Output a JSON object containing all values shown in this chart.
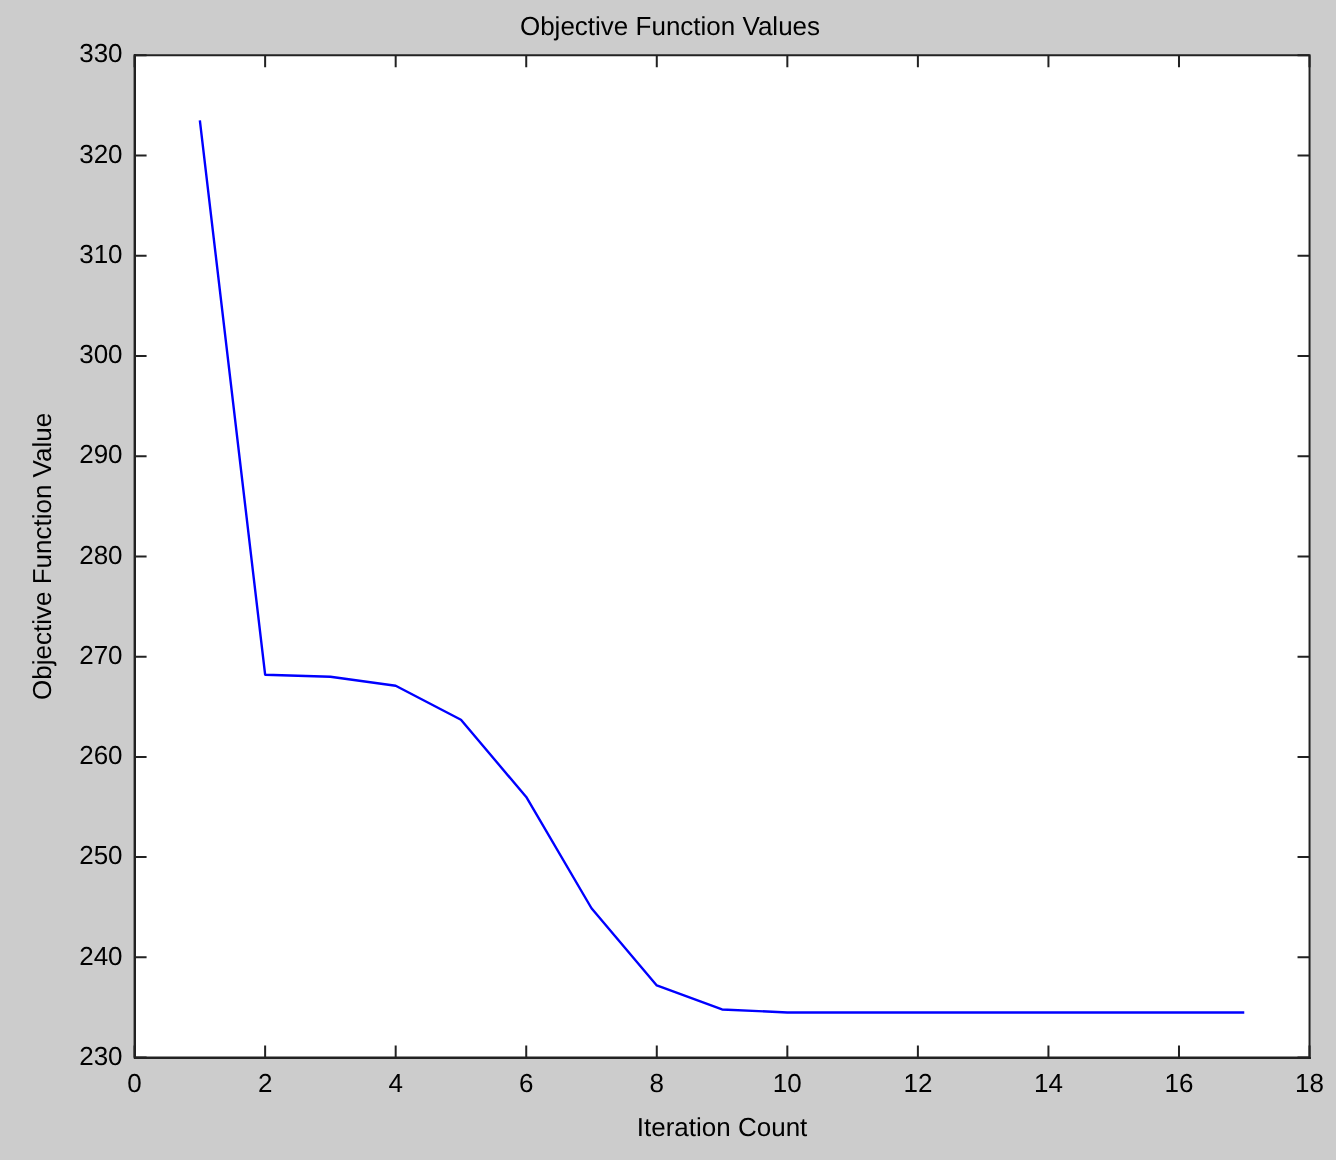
{
  "chart_data": {
    "type": "line",
    "title": "Objective Function Values",
    "xlabel": "Iteration Count",
    "ylabel": "Objective Function Value",
    "x": [
      1,
      2,
      3,
      4,
      5,
      6,
      7,
      8,
      9,
      10,
      11,
      12,
      13,
      14,
      15,
      16,
      17
    ],
    "series": [
      {
        "color": "#0000ff",
        "values": [
          323.5,
          268.2,
          268,
          267.1,
          263.7,
          256,
          244.9,
          237.2,
          234.8,
          234.5,
          234.5,
          234.5,
          234.5,
          234.5,
          234.5,
          234.5,
          234.5
        ]
      }
    ],
    "xlim": [
      0,
      18
    ],
    "xticks": [
      0,
      2,
      4,
      6,
      8,
      10,
      12,
      14,
      16,
      18
    ],
    "ylim": [
      230,
      330
    ],
    "yticks": [
      230,
      240,
      250,
      260,
      270,
      280,
      290,
      300,
      310,
      320,
      330
    ],
    "grid": false,
    "legend": false,
    "marker": "none",
    "line_style": "solid"
  }
}
